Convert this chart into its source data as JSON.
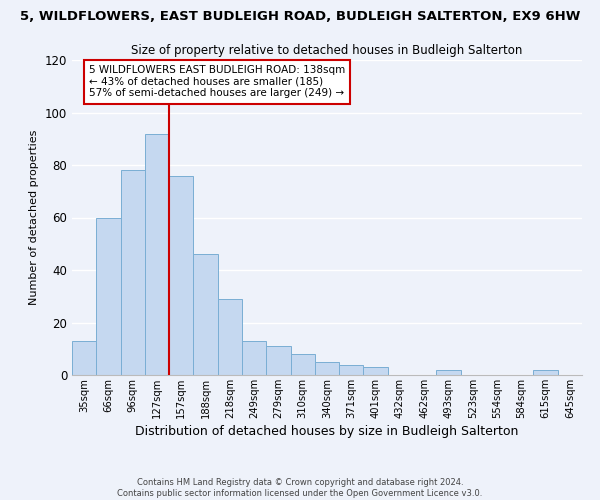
{
  "title": "5, WILDFLOWERS, EAST BUDLEIGH ROAD, BUDLEIGH SALTERTON, EX9 6HW",
  "subtitle": "Size of property relative to detached houses in Budleigh Salterton",
  "xlabel": "Distribution of detached houses by size in Budleigh Salterton",
  "ylabel": "Number of detached properties",
  "bar_labels": [
    "35sqm",
    "66sqm",
    "96sqm",
    "127sqm",
    "157sqm",
    "188sqm",
    "218sqm",
    "249sqm",
    "279sqm",
    "310sqm",
    "340sqm",
    "371sqm",
    "401sqm",
    "432sqm",
    "462sqm",
    "493sqm",
    "523sqm",
    "554sqm",
    "584sqm",
    "615sqm",
    "645sqm"
  ],
  "bar_values": [
    13,
    60,
    78,
    92,
    76,
    46,
    29,
    13,
    11,
    8,
    5,
    4,
    3,
    0,
    0,
    2,
    0,
    0,
    0,
    2,
    0
  ],
  "bar_color": "#c5d8f0",
  "bar_edge_color": "#7aaed4",
  "vline_x": 3.5,
  "vline_color": "#cc0000",
  "annotation_text": "5 WILDFLOWERS EAST BUDLEIGH ROAD: 138sqm\n← 43% of detached houses are smaller (185)\n57% of semi-detached houses are larger (249) →",
  "annotation_box_color": "#ffffff",
  "annotation_box_edge": "#cc0000",
  "ylim": [
    0,
    120
  ],
  "yticks": [
    0,
    20,
    40,
    60,
    80,
    100,
    120
  ],
  "footnote1": "Contains HM Land Registry data © Crown copyright and database right 2024.",
  "footnote2": "Contains public sector information licensed under the Open Government Licence v3.0.",
  "background_color": "#eef2fa",
  "plot_background": "#eef2fa"
}
